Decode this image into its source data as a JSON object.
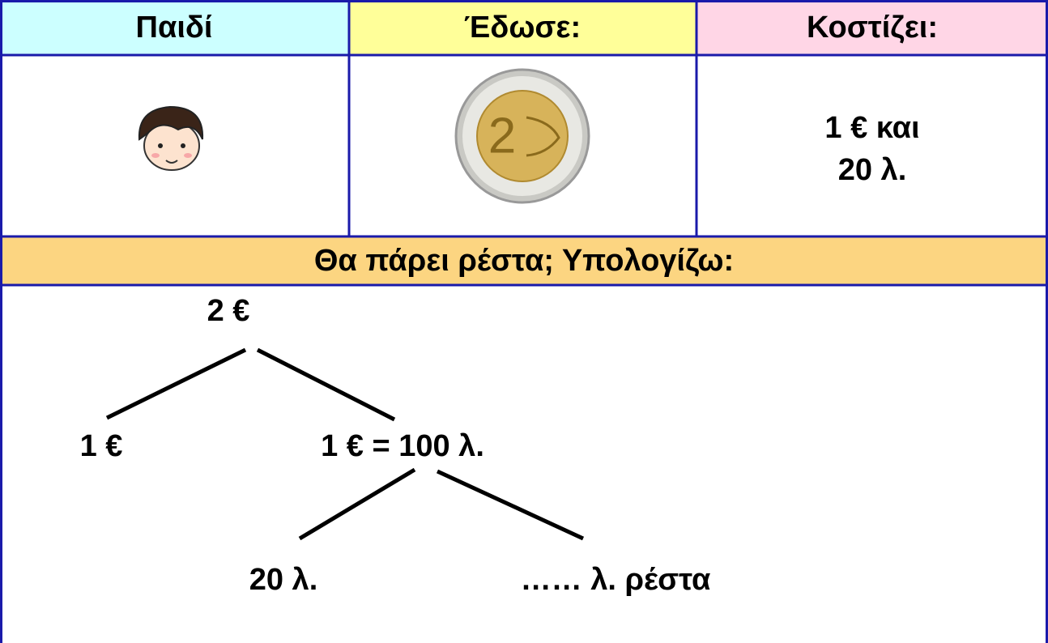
{
  "header": {
    "columns": [
      "Παιδί",
      "Έδωσε:",
      "Κοστίζει:"
    ]
  },
  "row": {
    "cost": [
      "1 € και",
      "20 λ."
    ]
  },
  "section": {
    "title": "Θα πάρει ρέστα; Υπολογίζω:"
  },
  "tree": {
    "nodes": [
      {
        "label": "2 €"
      },
      {
        "label": "1 €"
      },
      {
        "label": "1 € = 100 λ."
      },
      {
        "label": "20 λ."
      },
      {
        "label": "…… λ. ρέστα"
      }
    ]
  }
}
